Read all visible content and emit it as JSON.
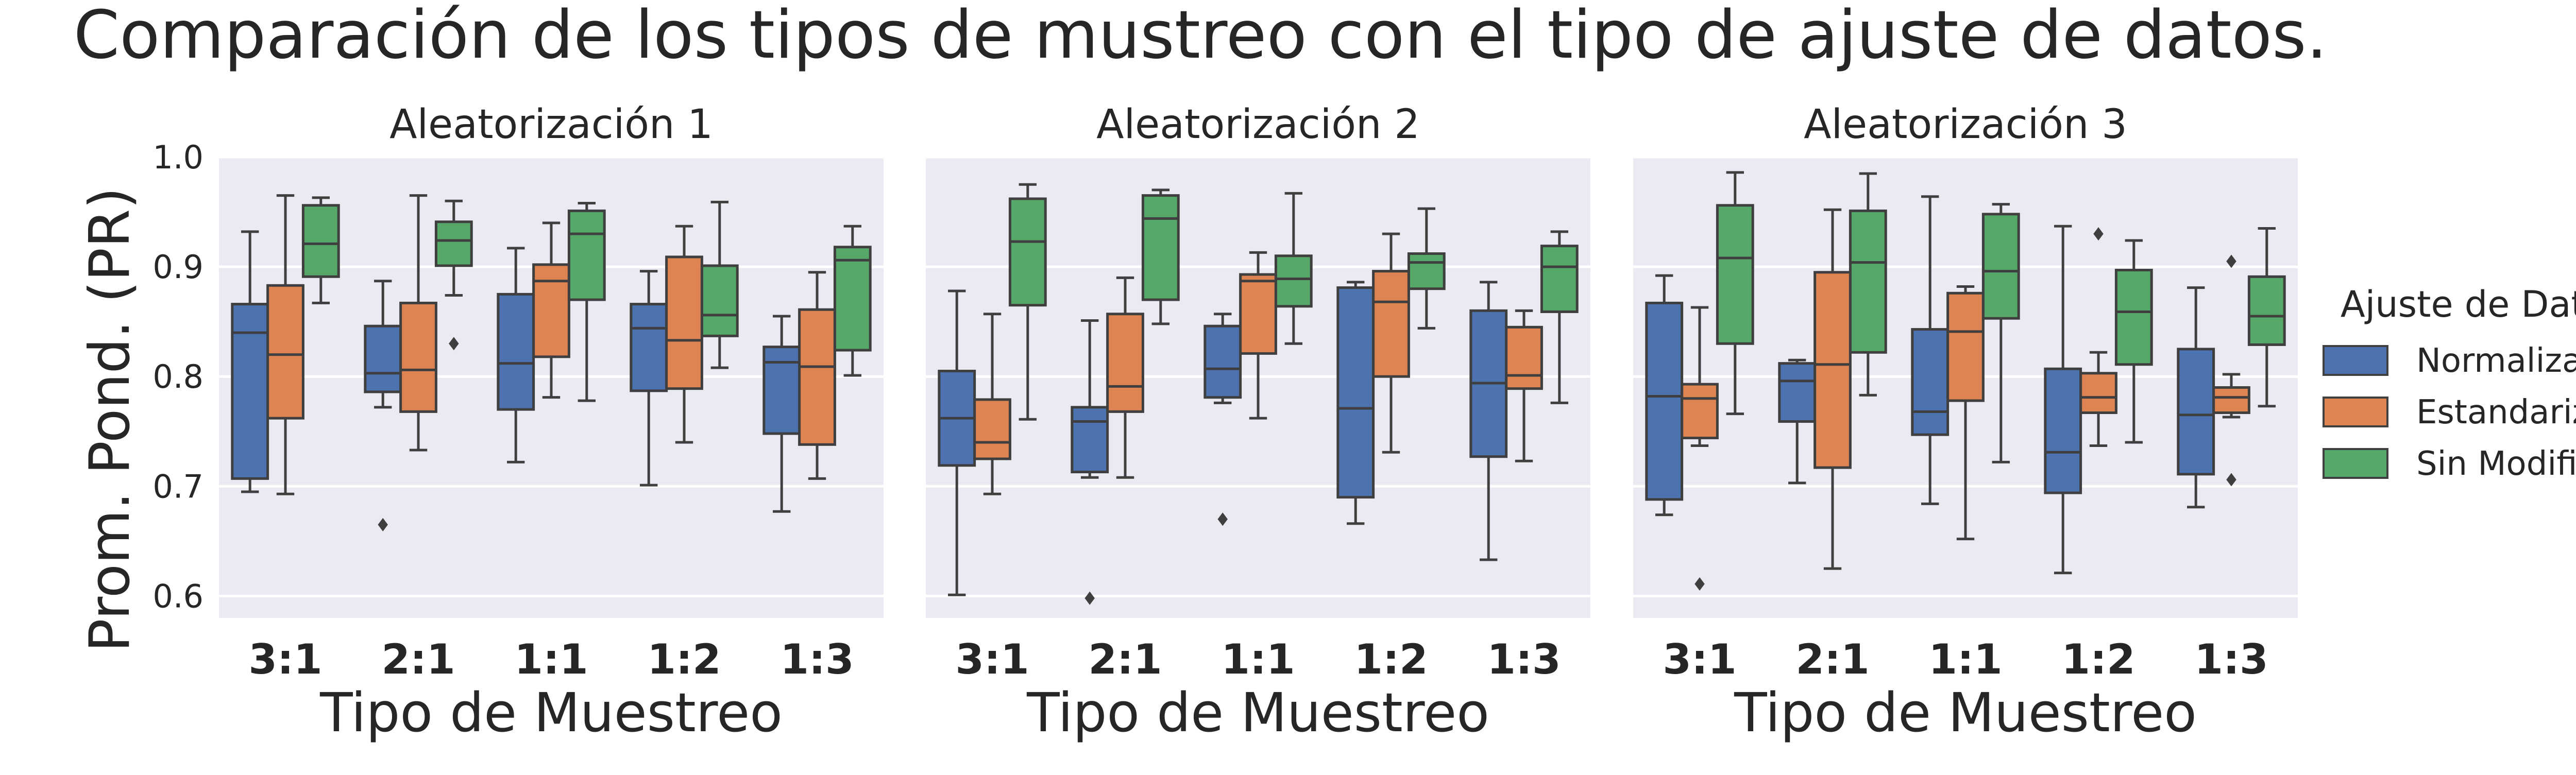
{
  "title": "Comparación de los tipos de mustreo con el tipo de ajuste de datos.",
  "chart_data": {
    "type": "box",
    "title": "Comparación de los tipos de mustreo con el tipo de ajuste de datos.",
    "ylabel": "Prom. Pond. (PR)",
    "xlabel": "Tipo de Muestreo",
    "ylim": [
      0.58,
      1.0
    ],
    "yticks": [
      "0.6",
      "0.7",
      "0.8",
      "0.9",
      "1.0"
    ],
    "grid": true,
    "categories": [
      "3:1",
      "2:1",
      "1:1",
      "1:2",
      "1:3"
    ],
    "legend": {
      "title": "Ajuste de Datos",
      "placement": "right",
      "entries": [
        {
          "name": "Normalizados",
          "color": "#4c72b0"
        },
        {
          "name": "Estandarizados",
          "color": "#dd8452"
        },
        {
          "name": "Sin Modificación",
          "color": "#55a868"
        }
      ]
    },
    "panels": [
      {
        "title": "Aleatorización 1",
        "series": [
          {
            "name": "Normalizados",
            "boxes": [
              {
                "min": 0.695,
                "q1": 0.707,
                "median": 0.84,
                "q3": 0.866,
                "max": 0.932,
                "outliers": []
              },
              {
                "min": 0.772,
                "q1": 0.786,
                "median": 0.803,
                "q3": 0.846,
                "max": 0.887,
                "outliers": [
                  0.665
                ]
              },
              {
                "min": 0.722,
                "q1": 0.77,
                "median": 0.812,
                "q3": 0.875,
                "max": 0.917,
                "outliers": []
              },
              {
                "min": 0.701,
                "q1": 0.787,
                "median": 0.844,
                "q3": 0.866,
                "max": 0.896,
                "outliers": []
              },
              {
                "min": 0.677,
                "q1": 0.748,
                "median": 0.813,
                "q3": 0.827,
                "max": 0.855,
                "outliers": []
              }
            ]
          },
          {
            "name": "Estandarizados",
            "boxes": [
              {
                "min": 0.693,
                "q1": 0.762,
                "median": 0.82,
                "q3": 0.883,
                "max": 0.965,
                "outliers": []
              },
              {
                "min": 0.733,
                "q1": 0.768,
                "median": 0.806,
                "q3": 0.867,
                "max": 0.965,
                "outliers": []
              },
              {
                "min": 0.781,
                "q1": 0.818,
                "median": 0.887,
                "q3": 0.902,
                "max": 0.94,
                "outliers": []
              },
              {
                "min": 0.74,
                "q1": 0.789,
                "median": 0.833,
                "q3": 0.909,
                "max": 0.937,
                "outliers": []
              },
              {
                "min": 0.707,
                "q1": 0.738,
                "median": 0.809,
                "q3": 0.861,
                "max": 0.895,
                "outliers": []
              }
            ]
          },
          {
            "name": "Sin Modificación",
            "boxes": [
              {
                "min": 0.867,
                "q1": 0.891,
                "median": 0.921,
                "q3": 0.956,
                "max": 0.963,
                "outliers": []
              },
              {
                "min": 0.874,
                "q1": 0.901,
                "median": 0.924,
                "q3": 0.941,
                "max": 0.96,
                "outliers": [
                  0.83
                ]
              },
              {
                "min": 0.778,
                "q1": 0.87,
                "median": 0.93,
                "q3": 0.951,
                "max": 0.958,
                "outliers": []
              },
              {
                "min": 0.808,
                "q1": 0.837,
                "median": 0.856,
                "q3": 0.901,
                "max": 0.959,
                "outliers": []
              },
              {
                "min": 0.801,
                "q1": 0.824,
                "median": 0.906,
                "q3": 0.918,
                "max": 0.937,
                "outliers": []
              }
            ]
          }
        ]
      },
      {
        "title": "Aleatorización 2",
        "series": [
          {
            "name": "Normalizados",
            "boxes": [
              {
                "min": 0.601,
                "q1": 0.719,
                "median": 0.762,
                "q3": 0.805,
                "max": 0.878,
                "outliers": []
              },
              {
                "min": 0.708,
                "q1": 0.713,
                "median": 0.759,
                "q3": 0.772,
                "max": 0.851,
                "outliers": [
                  0.598
                ]
              },
              {
                "min": 0.776,
                "q1": 0.781,
                "median": 0.807,
                "q3": 0.846,
                "max": 0.857,
                "outliers": [
                  0.67
                ]
              },
              {
                "min": 0.666,
                "q1": 0.69,
                "median": 0.771,
                "q3": 0.881,
                "max": 0.886,
                "outliers": []
              },
              {
                "min": 0.633,
                "q1": 0.727,
                "median": 0.794,
                "q3": 0.86,
                "max": 0.886,
                "outliers": []
              }
            ]
          },
          {
            "name": "Estandarizados",
            "boxes": [
              {
                "min": 0.693,
                "q1": 0.725,
                "median": 0.74,
                "q3": 0.779,
                "max": 0.857,
                "outliers": []
              },
              {
                "min": 0.708,
                "q1": 0.768,
                "median": 0.791,
                "q3": 0.857,
                "max": 0.89,
                "outliers": []
              },
              {
                "min": 0.762,
                "q1": 0.821,
                "median": 0.887,
                "q3": 0.893,
                "max": 0.913,
                "outliers": []
              },
              {
                "min": 0.731,
                "q1": 0.8,
                "median": 0.868,
                "q3": 0.896,
                "max": 0.93,
                "outliers": []
              },
              {
                "min": 0.723,
                "q1": 0.789,
                "median": 0.801,
                "q3": 0.845,
                "max": 0.86,
                "outliers": []
              }
            ]
          },
          {
            "name": "Sin Modificación",
            "boxes": [
              {
                "min": 0.761,
                "q1": 0.865,
                "median": 0.923,
                "q3": 0.962,
                "max": 0.975,
                "outliers": []
              },
              {
                "min": 0.848,
                "q1": 0.87,
                "median": 0.944,
                "q3": 0.965,
                "max": 0.97,
                "outliers": []
              },
              {
                "min": 0.83,
                "q1": 0.864,
                "median": 0.889,
                "q3": 0.91,
                "max": 0.967,
                "outliers": []
              },
              {
                "min": 0.844,
                "q1": 0.88,
                "median": 0.904,
                "q3": 0.912,
                "max": 0.953,
                "outliers": []
              },
              {
                "min": 0.776,
                "q1": 0.859,
                "median": 0.9,
                "q3": 0.919,
                "max": 0.932,
                "outliers": []
              }
            ]
          }
        ]
      },
      {
        "title": "Aleatorización 3",
        "series": [
          {
            "name": "Normalizados",
            "boxes": [
              {
                "min": 0.674,
                "q1": 0.688,
                "median": 0.782,
                "q3": 0.867,
                "max": 0.892,
                "outliers": []
              },
              {
                "min": 0.703,
                "q1": 0.759,
                "median": 0.796,
                "q3": 0.812,
                "max": 0.815,
                "outliers": []
              },
              {
                "min": 0.684,
                "q1": 0.747,
                "median": 0.768,
                "q3": 0.843,
                "max": 0.964,
                "outliers": []
              },
              {
                "min": 0.621,
                "q1": 0.694,
                "median": 0.731,
                "q3": 0.807,
                "max": 0.937,
                "outliers": []
              },
              {
                "min": 0.681,
                "q1": 0.711,
                "median": 0.765,
                "q3": 0.825,
                "max": 0.881,
                "outliers": []
              }
            ]
          },
          {
            "name": "Estandarizados",
            "boxes": [
              {
                "min": 0.737,
                "q1": 0.744,
                "median": 0.78,
                "q3": 0.793,
                "max": 0.863,
                "outliers": [
                  0.611
                ]
              },
              {
                "min": 0.625,
                "q1": 0.717,
                "median": 0.811,
                "q3": 0.895,
                "max": 0.952,
                "outliers": []
              },
              {
                "min": 0.652,
                "q1": 0.778,
                "median": 0.841,
                "q3": 0.876,
                "max": 0.882,
                "outliers": []
              },
              {
                "min": 0.737,
                "q1": 0.767,
                "median": 0.781,
                "q3": 0.803,
                "max": 0.822,
                "outliers": [
                  0.93
                ]
              },
              {
                "min": 0.763,
                "q1": 0.767,
                "median": 0.781,
                "q3": 0.79,
                "max": 0.802,
                "outliers": [
                  0.905,
                  0.706
                ]
              }
            ]
          },
          {
            "name": "Sin Modificación",
            "boxes": [
              {
                "min": 0.766,
                "q1": 0.83,
                "median": 0.908,
                "q3": 0.956,
                "max": 0.986,
                "outliers": []
              },
              {
                "min": 0.783,
                "q1": 0.822,
                "median": 0.904,
                "q3": 0.951,
                "max": 0.985,
                "outliers": []
              },
              {
                "min": 0.722,
                "q1": 0.853,
                "median": 0.896,
                "q3": 0.948,
                "max": 0.957,
                "outliers": []
              },
              {
                "min": 0.74,
                "q1": 0.811,
                "median": 0.859,
                "q3": 0.897,
                "max": 0.924,
                "outliers": []
              },
              {
                "min": 0.773,
                "q1": 0.829,
                "median": 0.855,
                "q3": 0.891,
                "max": 0.935,
                "outliers": []
              }
            ]
          }
        ]
      }
    ]
  }
}
